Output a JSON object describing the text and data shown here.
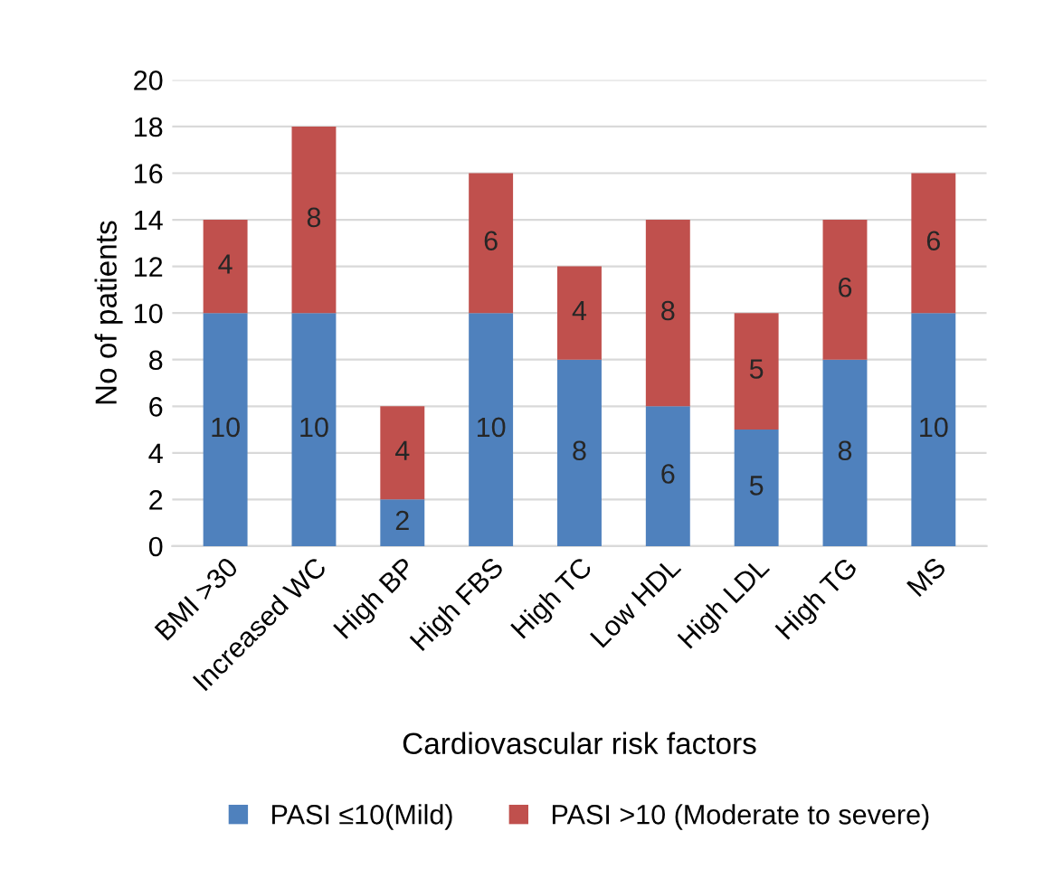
{
  "chart_data": {
    "type": "bar",
    "stacked": true,
    "xlabel": "Cardiovascular risk factors",
    "ylabel": "No of patients",
    "categories": [
      "BMI >30",
      "Increased WC",
      "High BP",
      "High FBS",
      "High TC",
      "Low HDL",
      "High LDL",
      "High TG",
      "MS"
    ],
    "series": [
      {
        "name": "PASI ≤10(Mild)",
        "color": "#4f81bd",
        "values": [
          10,
          10,
          2,
          10,
          8,
          6,
          5,
          8,
          10
        ]
      },
      {
        "name": "PASI >10 (Moderate to severe)",
        "color": "#c0504d",
        "values": [
          4,
          8,
          4,
          6,
          4,
          8,
          5,
          6,
          6
        ]
      }
    ],
    "ylim": [
      0,
      20
    ],
    "yticks": [
      0,
      2,
      4,
      6,
      8,
      10,
      12,
      14,
      16,
      18,
      20
    ],
    "grid": "y",
    "legend": "bottom",
    "data_labels": true
  }
}
